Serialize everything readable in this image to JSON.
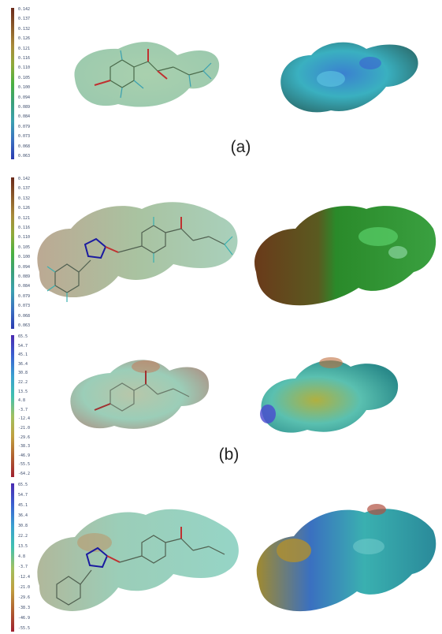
{
  "captions": {
    "a": "(a)",
    "b": "(b)"
  },
  "scales": {
    "a1": [
      "0.142",
      "0.137",
      "0.132",
      "0.126",
      "0.121",
      "0.116",
      "0.110",
      "0.105",
      "0.100",
      "0.094",
      "0.089",
      "0.084",
      "0.079",
      "0.073",
      "0.068",
      "0.063"
    ],
    "a2": [
      "0.142",
      "0.137",
      "0.132",
      "0.126",
      "0.121",
      "0.116",
      "0.110",
      "0.105",
      "0.100",
      "0.094",
      "0.089",
      "0.084",
      "0.079",
      "0.073",
      "0.068",
      "0.063"
    ],
    "b1": [
      "65.5",
      "54.7",
      "45.1",
      "36.4",
      "30.8",
      "22.2",
      "13.5",
      "4.8",
      "-3.7",
      "-12.4",
      "-21.0",
      "-29.6",
      "-38.3",
      "-46.9",
      "-55.5",
      "-64.2"
    ],
    "b2": [
      "65.5",
      "54.7",
      "45.1",
      "36.4",
      "30.8",
      "22.2",
      "13.5",
      "4.8",
      "-3.7",
      "-12.4",
      "-21.0",
      "-29.6",
      "-38.3",
      "-46.9",
      "-55.5"
    ]
  },
  "colors": {
    "scale_a": [
      "#6b2a1a",
      "#8a5a2a",
      "#a88a3a",
      "#8faa3a",
      "#4ab040",
      "#3aa07a",
      "#3aa0b0",
      "#3a70c0",
      "#2a3ab0"
    ],
    "scale_b": [
      "#4a2ab0",
      "#3a60d0",
      "#3aa0d0",
      "#40c0b0",
      "#a0c060",
      "#c0a040",
      "#b06030",
      "#a02030"
    ]
  }
}
